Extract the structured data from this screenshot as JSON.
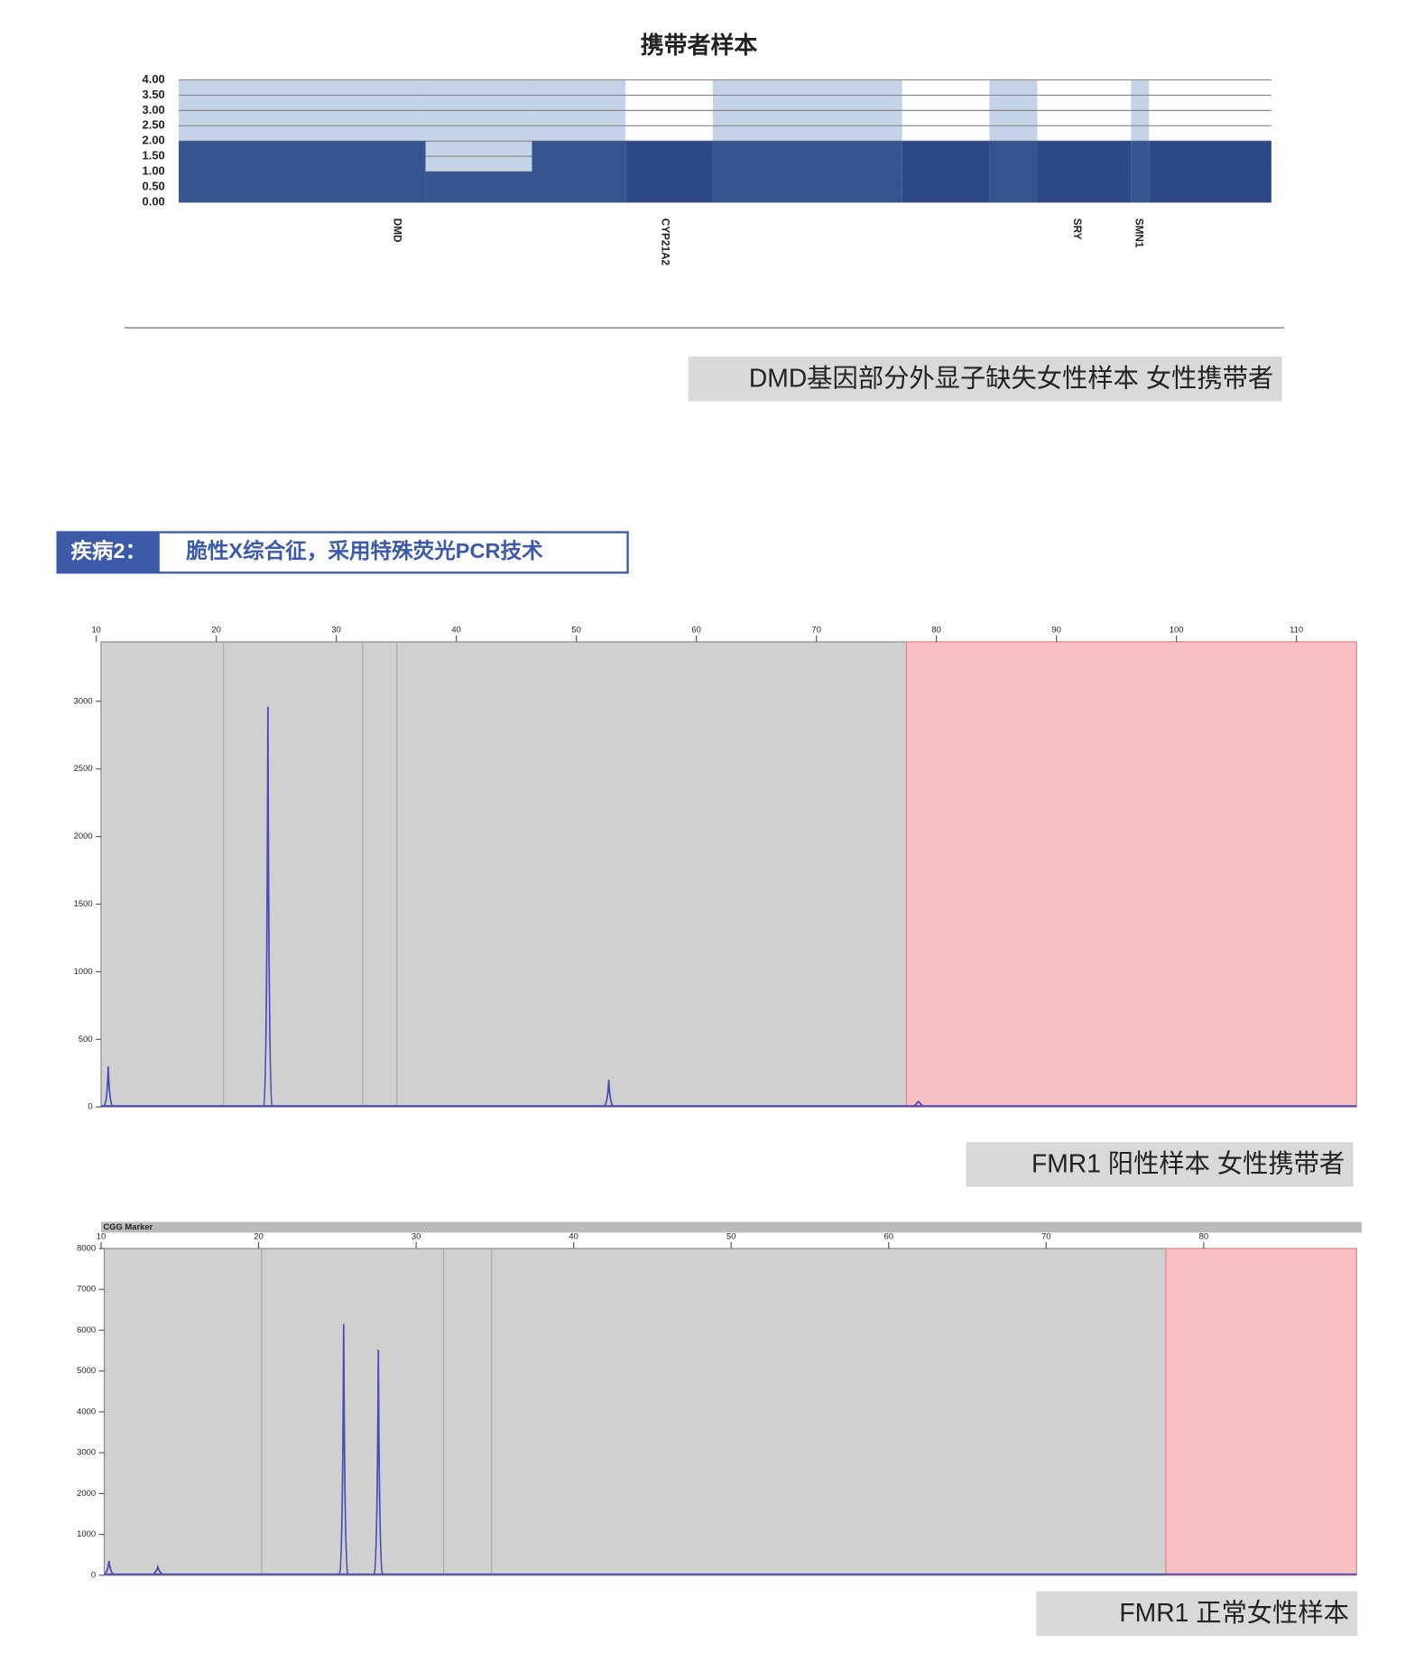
{
  "section": {
    "label": "疾病2：",
    "title": "脆性X综合征，采用特殊荧光PCR技术"
  },
  "chart_data": [
    {
      "type": "bar",
      "title": "携带者样本",
      "caption": "DMD基因部分外显子缺失女性样本 女性携带者",
      "categories": [
        "DMD",
        null,
        null,
        "CYP21A2",
        null,
        null,
        null,
        "SRY",
        "SMN1",
        null
      ],
      "values": [
        2.0,
        1.0,
        2.0,
        2.0,
        2.0,
        2.0,
        2.0,
        2.0,
        2.0,
        2.0
      ],
      "color": "#2e4a86",
      "ylim": [
        0,
        4
      ],
      "yticks": [
        {
          "value": 4,
          "label": "4.00"
        },
        {
          "value": 3.5,
          "label": "3.50"
        },
        {
          "value": 3,
          "label": "3.00"
        },
        {
          "value": 2.5,
          "label": "2.50"
        },
        {
          "value": 2,
          "label": "2.00"
        },
        {
          "value": 1.5,
          "label": "1.50"
        },
        {
          "value": 1,
          "label": "1.00"
        },
        {
          "value": 0.5,
          "label": "0.50"
        },
        {
          "value": 0,
          "label": "0.00"
        }
      ],
      "grid": true
    },
    {
      "type": "line",
      "caption": "FMR1 阳性样本  女性携带者",
      "x": [
        11,
        24.3,
        52.7,
        78.5
      ],
      "values": [
        300,
        2960,
        200,
        40
      ],
      "color": "#4a4ab8",
      "xlim": [
        10.4,
        115
      ],
      "xticks": [
        10,
        20,
        30,
        40,
        50,
        60,
        70,
        80,
        90,
        100,
        110
      ],
      "ylim": [
        0,
        3440
      ],
      "yticks": [
        0,
        500,
        1000,
        1500,
        2000,
        2500,
        3000
      ],
      "highlight": [
        77.5,
        115
      ]
    },
    {
      "type": "line",
      "header": "CGG Marker",
      "caption": "FMR1 正常女性样本",
      "x": [
        10.5,
        13.6,
        25.4,
        27.6
      ],
      "values": [
        350,
        200,
        6150,
        5520
      ],
      "color": "#4a4ab8",
      "xlim": [
        10.2,
        89.7
      ],
      "xticks": [
        10,
        20,
        30,
        40,
        50,
        60,
        70,
        80
      ],
      "ylim": [
        0,
        8000
      ],
      "yticks": [
        0,
        1000,
        2000,
        3000,
        4000,
        5000,
        6000,
        7000,
        8000
      ],
      "highlight": [
        77.6,
        89.7
      ]
    }
  ]
}
